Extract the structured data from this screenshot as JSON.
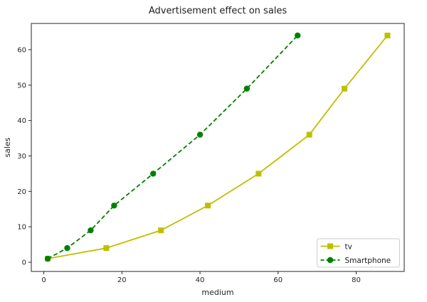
{
  "figure": {
    "background": "#ffffff"
  },
  "chart_data": {
    "type": "line",
    "title": "Advertisement effect on sales",
    "xlabel": "medium",
    "ylabel": "sales",
    "xlim": [
      -3.2,
      92.3
    ],
    "ylim": [
      -2.6,
      67.4
    ],
    "xticks": [
      0,
      20,
      40,
      60,
      80
    ],
    "yticks": [
      0,
      10,
      20,
      30,
      40,
      50,
      60
    ],
    "grid": false,
    "axis_color": "#4a4a4a",
    "tick_color": "#262626",
    "series": [
      {
        "name": "tv",
        "x": [
          1,
          16,
          30,
          42,
          55,
          68,
          77,
          88
        ],
        "y": [
          1,
          4,
          9,
          16,
          25,
          36,
          49,
          64
        ],
        "color": "#bfbf00",
        "linestyle": "solid",
        "marker": "square"
      },
      {
        "name": "Smartphone",
        "x": [
          1,
          6,
          12,
          18,
          28,
          40,
          52,
          65
        ],
        "y": [
          1,
          4,
          9,
          16,
          25,
          36,
          49,
          64
        ],
        "color": "#008000",
        "linestyle": "dashed",
        "marker": "circle"
      }
    ],
    "legend": {
      "position": "lower right",
      "border_color": "#cccccc",
      "background": "#ffffff"
    }
  }
}
